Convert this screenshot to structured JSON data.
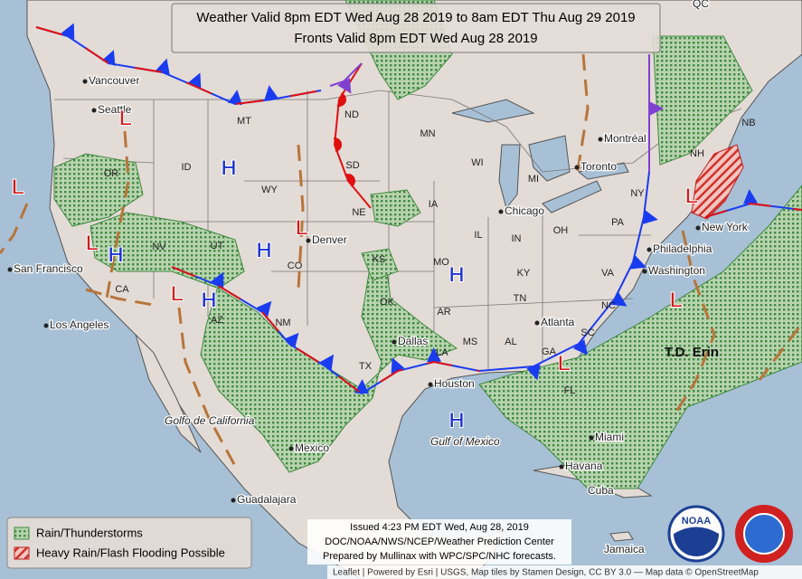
{
  "header": {
    "line1": "Weather Valid 8pm EDT Wed Aug 28 2019 to 8am EDT Thu Aug 29 2019",
    "line2": "Fronts Valid 8pm EDT Wed Aug 28 2019"
  },
  "cities": [
    "Vancouver",
    "Seattle",
    "San Francisco",
    "Los Angeles",
    "Denver",
    "Dallas",
    "Houston",
    "Chicago",
    "Toronto",
    "Montréal",
    "New York",
    "Philadelphia",
    "Washington",
    "Atlanta",
    "Miami",
    "Havana",
    "Mexico",
    "Guadalajara",
    "Golfo de California",
    "Gulf of Mexico",
    "Jamaica",
    "Cuba",
    "QC"
  ],
  "states": [
    "OR",
    "ID",
    "MT",
    "WY",
    "NV",
    "UT",
    "CA",
    "AZ",
    "CO",
    "NM",
    "ND",
    "SD",
    "NE",
    "KS",
    "OK",
    "TX",
    "MN",
    "IA",
    "MO",
    "AR",
    "LA",
    "WI",
    "IL",
    "MI",
    "IN",
    "OH",
    "KY",
    "TN",
    "MS",
    "AL",
    "GA",
    "FL",
    "SC",
    "NC",
    "VA",
    "PA",
    "NY",
    "NH",
    "NB"
  ],
  "pressure": [
    "H",
    "H",
    "H",
    "H",
    "H",
    "H",
    "L",
    "L",
    "L",
    "L",
    "L",
    "L",
    "L",
    "L"
  ],
  "storm": "T.D. Erin",
  "legend": [
    "Rain/Thunderstorms",
    "Heavy Rain/Flash Flooding Possible"
  ],
  "issued": [
    "Issued 4:23 PM EDT Wed, Aug 28, 2019",
    "DOC/NOAA/NWS/NCEP/Weather Prediction Center",
    "Prepared by Mullinax with WPC/SPC/NHC forecasts."
  ],
  "logo": "NOAA",
  "attribution": "Leaflet | Powered by Esri | USGS, Map tiles by Stamen Design, CC BY 3.0 — Map data © OpenStreetMap"
}
